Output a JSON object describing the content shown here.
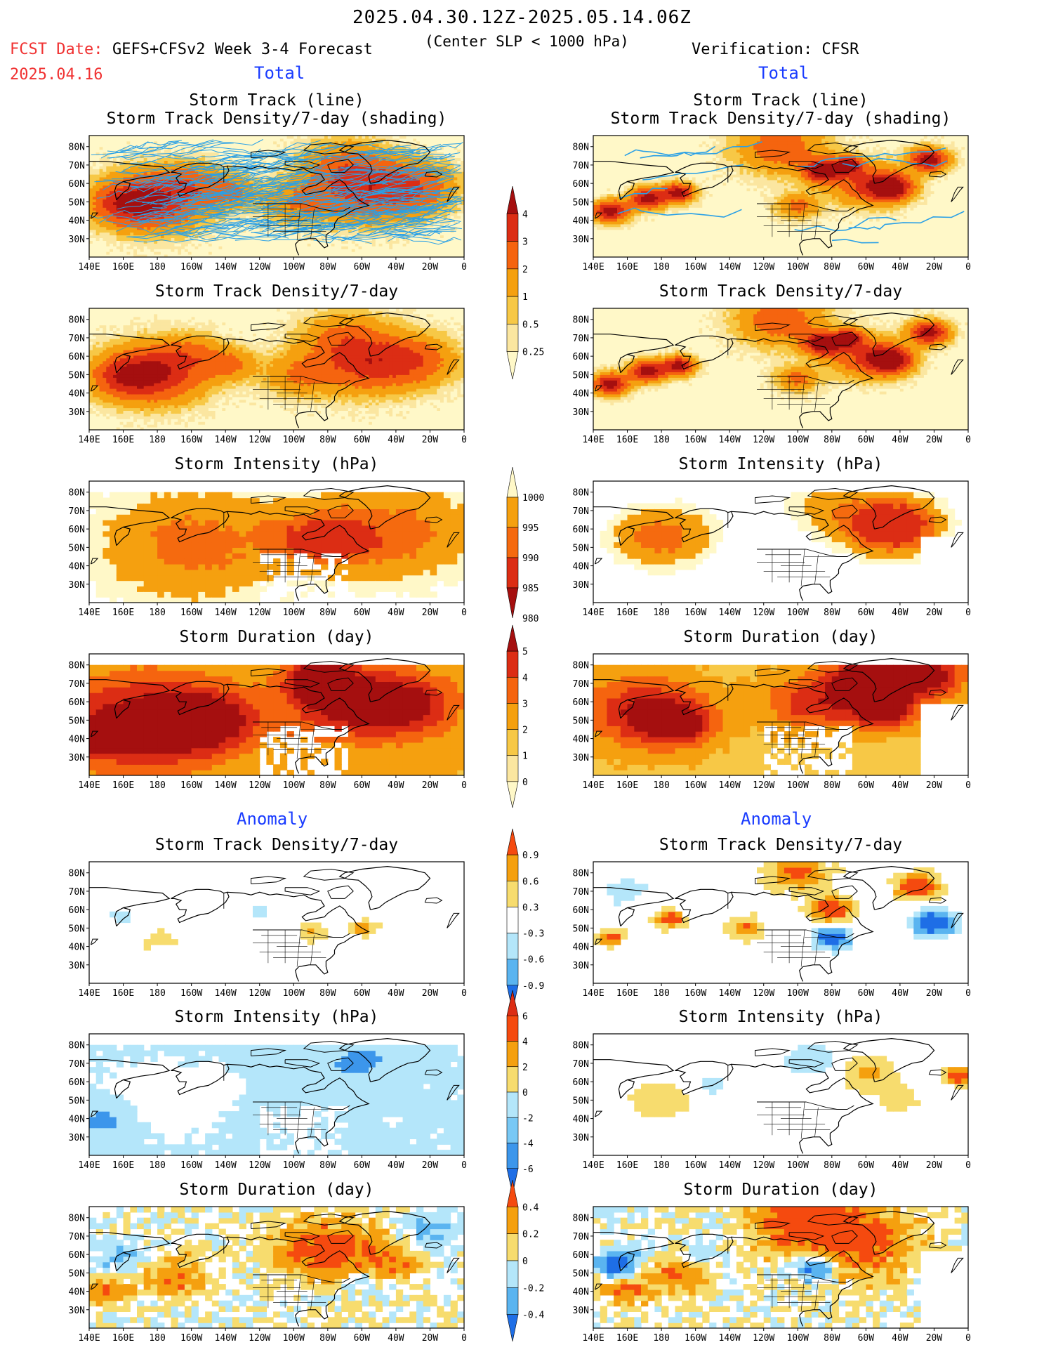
{
  "header": {
    "title": "2025.04.30.12Z-2025.05.14.06Z",
    "subtitle": "(Center SLP < 1000 hPa)",
    "fcst_date_label": "FCST Date:",
    "fcst_date_value": "2025.04.16",
    "left_label": "GEFS+CFSv2 Week 3-4 Forecast",
    "right_label": "Verification: CFSR"
  },
  "sections": {
    "total": "Total",
    "anomaly": "Anomaly"
  },
  "panel_titles": {
    "track_line": "Storm Track (line)",
    "track_density_shading": "Storm Track Density/7-day (shading)",
    "track_density": "Storm Track Density/7-day",
    "intensity": "Storm Intensity (hPa)",
    "duration": "Storm Duration (day)"
  },
  "axes": {
    "lat_labels": [
      "80N",
      "70N",
      "60N",
      "50N",
      "40N",
      "30N"
    ],
    "lon_labels": [
      "140E",
      "160E",
      "180",
      "160W",
      "140W",
      "120W",
      "100W",
      "80W",
      "60W",
      "40W",
      "20W",
      "0"
    ]
  },
  "colorbars": {
    "density": {
      "labels": [
        "4",
        "3",
        "2",
        "1",
        "0.5",
        "0.25"
      ],
      "colors": [
        "#a50f0f",
        "#dc2d14",
        "#f5640f",
        "#f5a00f",
        "#f7c846",
        "#fbe6a0",
        "#fff8c8"
      ]
    },
    "intensity": {
      "labels": [
        "1000",
        "995",
        "990",
        "985",
        "980"
      ],
      "colors": [
        "#fff8c8",
        "#f5a00f",
        "#f56a0f",
        "#dc2d14",
        "#a50f0f"
      ]
    },
    "duration": {
      "labels": [
        "5",
        "4",
        "3",
        "2",
        "1",
        "0"
      ],
      "colors": [
        "#a50f0f",
        "#dc2d14",
        "#f5640f",
        "#f5a00f",
        "#f7c846",
        "#fbe6a0",
        "#fff8c8"
      ]
    },
    "density_anom": {
      "labels": [
        "0.9",
        "0.6",
        "0.3",
        "-0.3",
        "-0.6",
        "-0.9"
      ],
      "colors": [
        "#f54a0f",
        "#f5a00f",
        "#f7dc6e",
        "#ffffff",
        "#b4e6fa",
        "#5ab4f0",
        "#1e6ee6"
      ]
    },
    "intensity_anom": {
      "labels": [
        "6",
        "4",
        "2",
        "0",
        "-2",
        "-4",
        "-6"
      ],
      "colors": [
        "#dc2d14",
        "#f54a0f",
        "#f5a00f",
        "#f7dc6e",
        "#b4e6fa",
        "#78c8f5",
        "#3c96eb",
        "#1e6ee6"
      ]
    },
    "duration_anom": {
      "labels": [
        "0.4",
        "0.2",
        "0",
        "-0.2",
        "-0.4"
      ],
      "colors": [
        "#f54a0f",
        "#f5a00f",
        "#f7dc6e",
        "#b4e6fa",
        "#5ab4f0",
        "#1e6ee6"
      ]
    }
  },
  "colors": {
    "fcst_red": "#f03232",
    "section_blue": "#1a3cff",
    "track_line": "#2aa0e6"
  }
}
